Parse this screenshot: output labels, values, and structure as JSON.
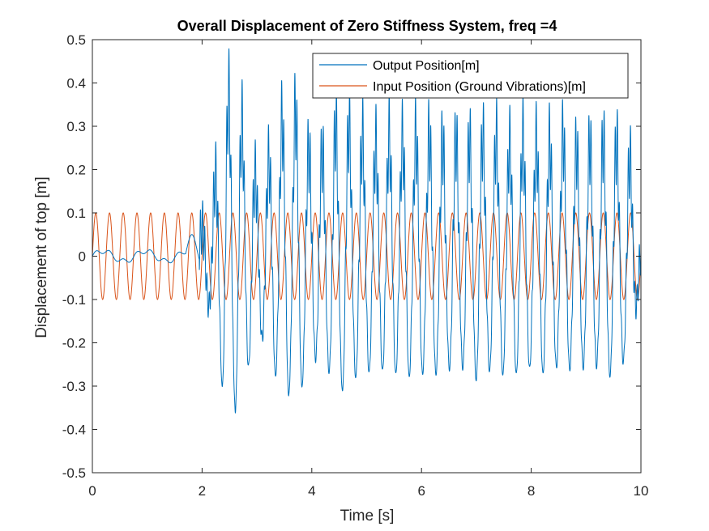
{
  "chart_data": {
    "type": "line",
    "title": "Overall Displacement of Zero Stiffness System, freq =4",
    "xlabel": "Time [s]",
    "ylabel": "Displacement of top [m]",
    "xlim": [
      0,
      10
    ],
    "ylim": [
      -0.5,
      0.5
    ],
    "xticks": [
      "0",
      "2",
      "4",
      "6",
      "8",
      "10"
    ],
    "yticks": [
      "-0.5",
      "-0.4",
      "-0.3",
      "-0.2",
      "-0.1",
      "0",
      "0.1",
      "0.2",
      "0.3",
      "0.4",
      "0.5"
    ],
    "grid": false,
    "legend_position": "top-right",
    "series": [
      {
        "name": "Output Position[m]",
        "color": "#0072BD",
        "description_points": {
          "x": [
            0,
            0.1,
            0.4,
            0.8,
            1.2,
            1.6,
            1.85,
            2.0,
            2.15,
            2.3,
            2.42,
            2.55,
            2.68,
            2.8,
            3.0,
            3.2,
            3.4,
            3.6,
            3.75,
            3.95,
            4.2,
            4.45,
            4.6,
            4.8,
            5.0,
            5.2,
            5.45,
            5.6,
            5.8,
            6.0,
            6.2,
            6.45,
            6.6,
            6.8,
            7.0,
            7.2,
            7.45,
            7.6,
            7.8,
            8.0,
            8.2,
            8.45,
            8.6,
            8.8,
            9.0,
            9.2,
            9.45,
            9.6,
            9.8,
            10.0
          ],
          "y": [
            0,
            0.005,
            -0.01,
            0.01,
            -0.015,
            0.01,
            0.04,
            -0.08,
            0.15,
            -0.26,
            -0.43,
            0.44,
            -0.38,
            0.33,
            -0.2,
            0.25,
            -0.36,
            0.38,
            -0.4,
            0.28,
            -0.28,
            0.36,
            -0.37,
            0.33,
            -0.32,
            0.3,
            -0.33,
            0.31,
            -0.33,
            0.32,
            -0.33,
            0.3,
            -0.32,
            0.3,
            -0.34,
            0.31,
            -0.33,
            0.3,
            -0.33,
            0.3,
            -0.32,
            0.3,
            -0.33,
            0.29,
            -0.31,
            0.3,
            -0.33,
            0.3,
            -0.27,
            0.04
          ]
        }
      },
      {
        "name": "Input Position (Ground Vibrations)[m]",
        "color": "#D95319",
        "amplitude": 0.1,
        "frequency_hz": 4
      }
    ]
  }
}
